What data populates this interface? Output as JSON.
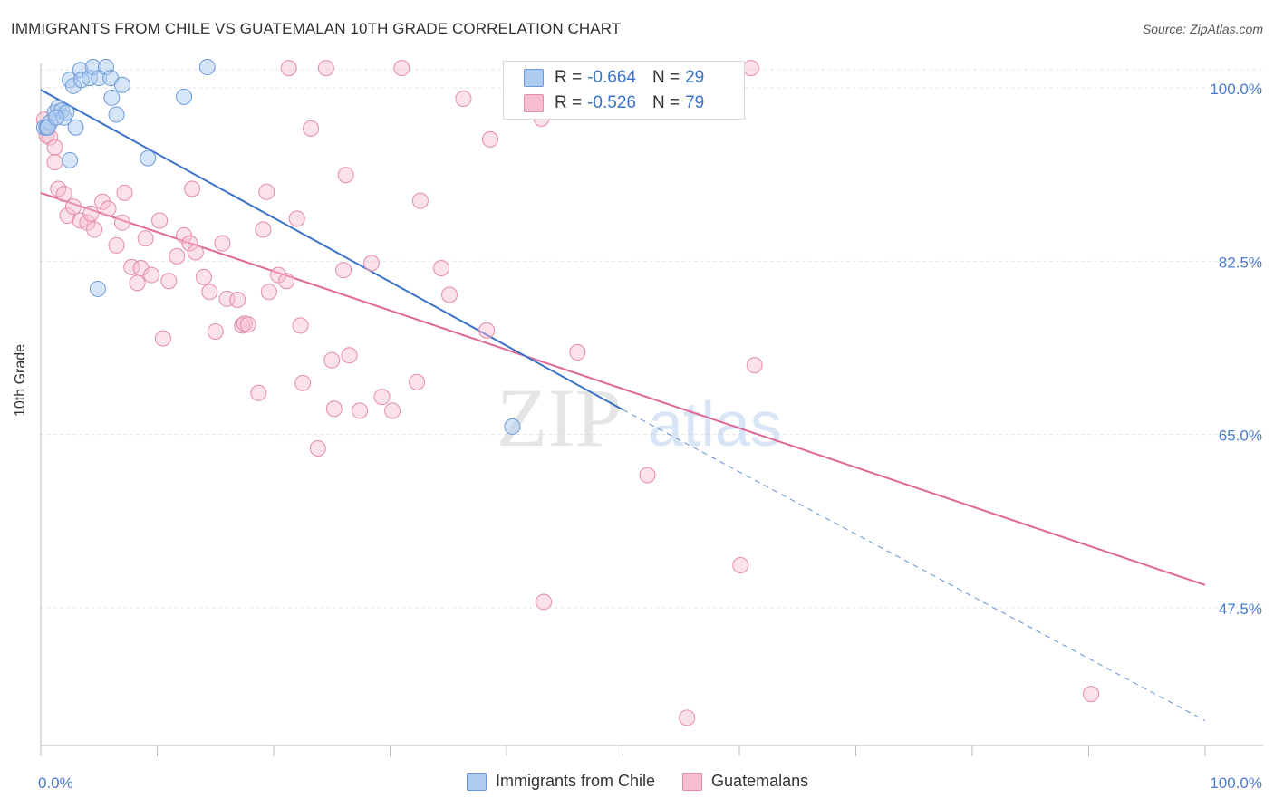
{
  "header": {
    "title": "IMMIGRANTS FROM CHILE VS GUATEMALAN 10TH GRADE CORRELATION CHART",
    "source": "Source: ZipAtlas.com"
  },
  "legend": {
    "rows": [
      {
        "r_label": "R = ",
        "r_value": "-0.664",
        "n_label": "N = ",
        "n_value": "29",
        "color": "#aecbf0",
        "border": "#6b9ad8"
      },
      {
        "r_label": "R = ",
        "r_value": "-0.526",
        "n_label": "N = ",
        "n_value": "79",
        "color": "#f6bdd0",
        "border": "#e58aab"
      }
    ],
    "bottom": [
      {
        "label": "Immigrants from Chile",
        "color": "#aecbf0",
        "border": "#6b9ad8"
      },
      {
        "label": "Guatemalans",
        "color": "#f6bdd0",
        "border": "#e58aab"
      }
    ]
  },
  "watermark": {
    "part1": "ZIP",
    "part2": "atlas"
  },
  "chart_data": {
    "type": "scatter",
    "xlabel": "",
    "ylabel": "10th Grade",
    "xlim": [
      0,
      100
    ],
    "ylim": [
      28,
      100
    ],
    "x_tick_labels": [
      "0.0%",
      "100.0%"
    ],
    "y_ticks": [
      100.0,
      82.5,
      65.0,
      47.5
    ],
    "y_tick_labels": [
      "100.0%",
      "82.5%",
      "65.0%",
      "47.5%"
    ],
    "grid": true,
    "colors": {
      "chile": "#3b73c8",
      "guatemalans": "#e06894",
      "tick_text": "#4a7cc9"
    },
    "series": [
      {
        "name": "Immigrants from Chile",
        "points": [
          [
            0.3,
            96.0
          ],
          [
            0.5,
            96.0
          ],
          [
            0.8,
            96.5
          ],
          [
            1.2,
            97.5
          ],
          [
            1.5,
            98.0
          ],
          [
            1.8,
            97.7
          ],
          [
            2.0,
            97.0
          ],
          [
            2.2,
            97.5
          ],
          [
            2.5,
            92.7
          ],
          [
            3.0,
            96.0
          ],
          [
            2.5,
            100.8
          ],
          [
            2.8,
            100.2
          ],
          [
            3.4,
            101.8
          ],
          [
            3.5,
            100.8
          ],
          [
            4.2,
            101.0
          ],
          [
            4.5,
            102.1
          ],
          [
            5.0,
            101.0
          ],
          [
            5.6,
            102.1
          ],
          [
            6.0,
            101.0
          ],
          [
            6.1,
            99.0
          ],
          [
            6.5,
            97.3
          ],
          [
            7.0,
            100.3
          ],
          [
            9.2,
            92.9
          ],
          [
            12.3,
            99.1
          ],
          [
            14.3,
            102.1
          ],
          [
            4.9,
            79.7
          ],
          [
            40.5,
            65.8
          ],
          [
            0.6,
            96.0
          ],
          [
            1.3,
            97.0
          ]
        ],
        "trend": {
          "x": [
            0,
            50
          ],
          "y": [
            99.8,
            67.5
          ]
        },
        "trend_extension": {
          "x": [
            50,
            100
          ],
          "y": [
            67.5,
            36.1
          ]
        }
      },
      {
        "name": "Guatemalans",
        "points": [
          [
            0.3,
            96.8
          ],
          [
            0.5,
            95.2
          ],
          [
            0.8,
            95.0
          ],
          [
            1.2,
            92.5
          ],
          [
            1.5,
            89.8
          ],
          [
            2.0,
            89.3
          ],
          [
            2.3,
            87.1
          ],
          [
            2.8,
            88.0
          ],
          [
            3.4,
            86.6
          ],
          [
            4.0,
            86.4
          ],
          [
            4.3,
            87.3
          ],
          [
            4.6,
            85.7
          ],
          [
            5.3,
            88.5
          ],
          [
            5.8,
            87.8
          ],
          [
            6.5,
            84.1
          ],
          [
            7.0,
            86.4
          ],
          [
            7.2,
            89.4
          ],
          [
            7.8,
            81.9
          ],
          [
            8.3,
            80.3
          ],
          [
            8.6,
            81.8
          ],
          [
            9.0,
            84.8
          ],
          [
            9.5,
            81.1
          ],
          [
            10.2,
            86.6
          ],
          [
            10.5,
            74.7
          ],
          [
            11.0,
            80.5
          ],
          [
            11.7,
            83.0
          ],
          [
            12.3,
            85.1
          ],
          [
            12.8,
            84.3
          ],
          [
            13.0,
            89.8
          ],
          [
            13.3,
            83.4
          ],
          [
            14.0,
            80.9
          ],
          [
            14.5,
            79.4
          ],
          [
            15.0,
            75.4
          ],
          [
            15.6,
            84.3
          ],
          [
            16.0,
            78.7
          ],
          [
            16.9,
            78.6
          ],
          [
            17.3,
            76.0
          ],
          [
            17.5,
            76.2
          ],
          [
            17.8,
            76.1
          ],
          [
            18.7,
            69.2
          ],
          [
            19.1,
            85.7
          ],
          [
            19.4,
            89.5
          ],
          [
            19.6,
            79.4
          ],
          [
            20.4,
            81.1
          ],
          [
            21.1,
            80.5
          ],
          [
            21.3,
            102.0
          ],
          [
            22.0,
            86.8
          ],
          [
            22.3,
            76.0
          ],
          [
            22.5,
            70.2
          ],
          [
            23.2,
            95.9
          ],
          [
            23.8,
            63.6
          ],
          [
            24.5,
            102.0
          ],
          [
            25.0,
            72.5
          ],
          [
            25.2,
            67.6
          ],
          [
            26.2,
            91.2
          ],
          [
            26.0,
            81.6
          ],
          [
            26.5,
            73.0
          ],
          [
            27.4,
            67.4
          ],
          [
            28.4,
            82.3
          ],
          [
            29.3,
            68.8
          ],
          [
            30.2,
            67.4
          ],
          [
            31.0,
            102.0
          ],
          [
            32.3,
            70.3
          ],
          [
            32.6,
            88.6
          ],
          [
            34.4,
            81.8
          ],
          [
            35.1,
            79.1
          ],
          [
            36.3,
            98.9
          ],
          [
            38.3,
            75.5
          ],
          [
            38.6,
            94.8
          ],
          [
            43.0,
            96.9
          ],
          [
            43.2,
            48.1
          ],
          [
            46.1,
            73.3
          ],
          [
            52.1,
            60.9
          ],
          [
            55.5,
            36.4
          ],
          [
            60.1,
            51.8
          ],
          [
            61.0,
            102.0
          ],
          [
            61.3,
            72.0
          ],
          [
            90.2,
            38.8
          ],
          [
            1.2,
            94.0
          ]
        ],
        "trend": {
          "x": [
            0,
            100
          ],
          "y": [
            89.4,
            49.8
          ]
        }
      }
    ]
  }
}
